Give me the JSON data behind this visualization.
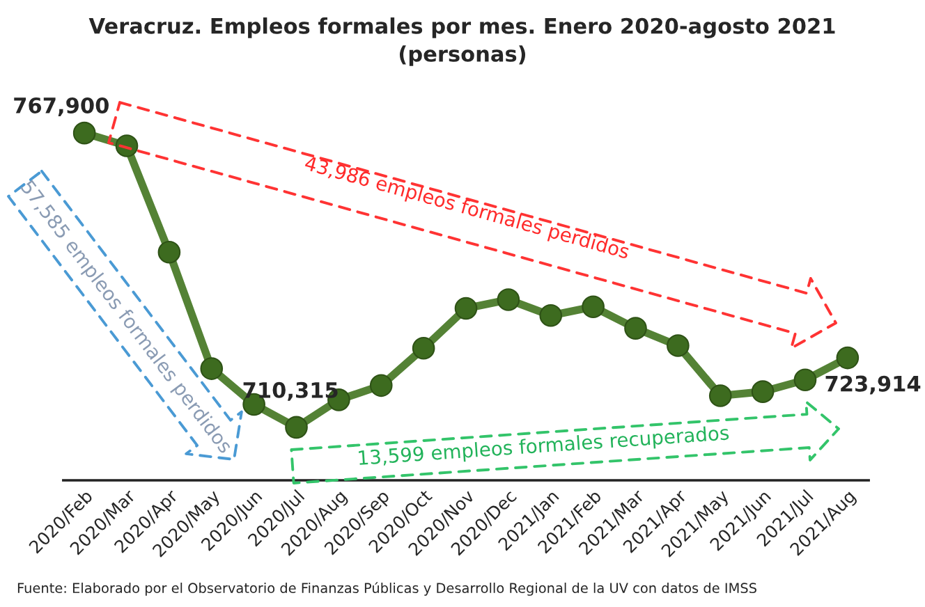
{
  "chart_data": {
    "type": "line",
    "title": "Veracruz. Empleos formales por mes. Enero 2020-agosto 2021",
    "subtitle": "(personas)",
    "categories": [
      "2020/Feb",
      "2020/Mar",
      "2020/Apr",
      "2020/May",
      "2020/Jun",
      "2020/Jul",
      "2020/Aug",
      "2020/Sep",
      "2020/Oct",
      "2020/Nov",
      "2020/Dec",
      "2021/Jan",
      "2021/Feb",
      "2021/Mar",
      "2021/Apr",
      "2021/May",
      "2021/Jun",
      "2021/Jul",
      "2021/Aug"
    ],
    "series": [
      {
        "color": "#548235",
        "values": [
          767900,
          765400,
          744600,
          721800,
          714800,
          710315,
          715700,
          718500,
          725800,
          733600,
          735300,
          732200,
          733900,
          729700,
          726300,
          716500,
          717300,
          719600,
          723914
        ],
        "value_labels": [
          "767,900",
          null,
          null,
          null,
          null,
          "710,315",
          null,
          null,
          null,
          null,
          null,
          null,
          null,
          null,
          null,
          null,
          null,
          null,
          "723,914"
        ]
      }
    ],
    "marker": "circle",
    "line_style": "solid",
    "grid": false,
    "legend": false,
    "annotations": [
      "43,986 empleos formales perdidos",
      "57,585 empleos formales perdidos",
      "13,599 empleos formales recuperados",
      "Fuente: Elaborado por el Observatorio de Finanzas Públicas y Desarrollo Regional de la UV con datos de IMSS"
    ]
  }
}
